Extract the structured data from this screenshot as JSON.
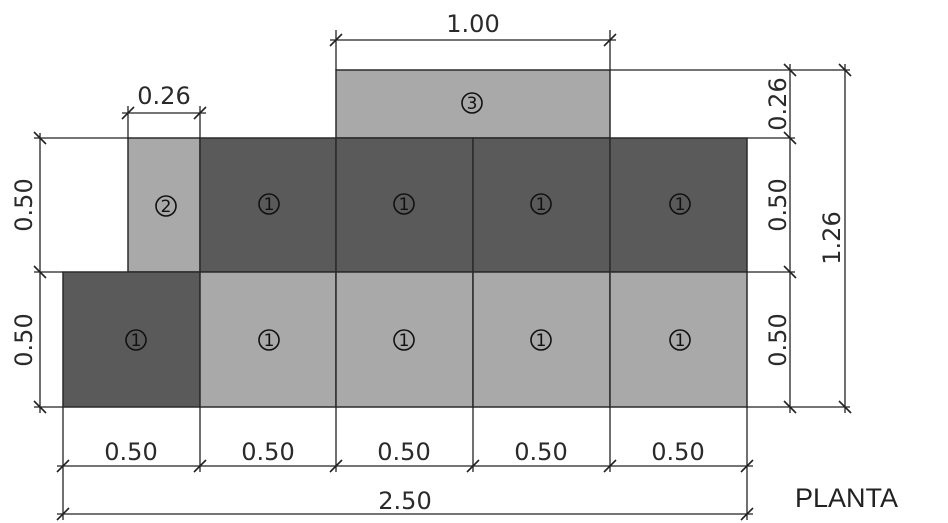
{
  "colors": {
    "block_dark": "#5a5a5a",
    "block_light": "#a9a9a9",
    "background": "#ffffff",
    "ink": "#222222"
  },
  "blocks": {
    "type_1_label": "1",
    "type_2_label": "2",
    "type_3_label": "3"
  },
  "dimensions": {
    "top_width": "1.00",
    "small_block_width": "0.26",
    "left_upper_height": "0.50",
    "left_lower_height": "0.50",
    "right_top_height": "0.26",
    "right_upper_height": "0.50",
    "right_lower_height": "0.50",
    "total_height": "1.26",
    "bottom_widths": [
      "0.50",
      "0.50",
      "0.50",
      "0.50",
      "0.50"
    ],
    "total_width": "2.50"
  },
  "view_label": "PLANTA"
}
